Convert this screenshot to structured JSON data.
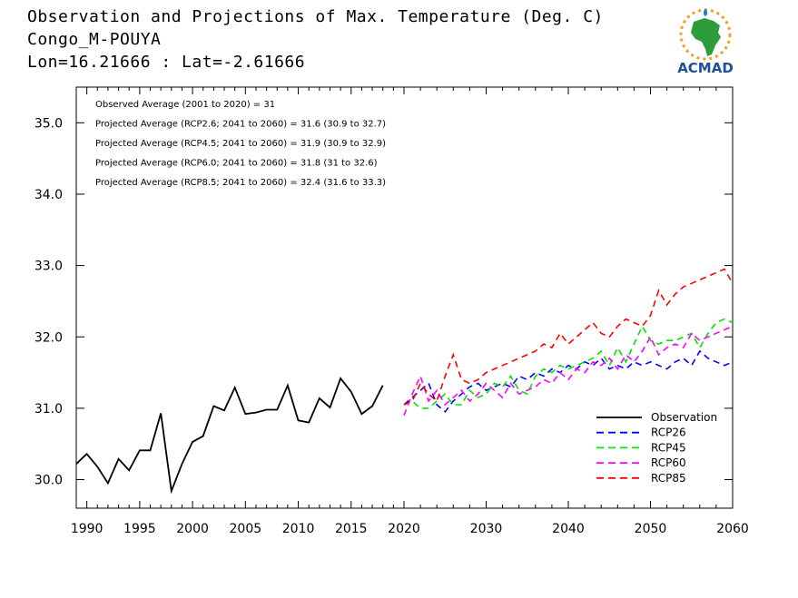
{
  "header": {
    "title": "Observation and Projections of Max. Temperature (Deg. C)",
    "station": "Congo_M-POUYA",
    "coords": "Lon=16.21666 : Lat=-2.61666"
  },
  "logo": {
    "text": "ACMAD",
    "icon": "africa-sun-logo-icon",
    "color_green": "#2e9c3a",
    "color_blue": "#1f4f9c",
    "color_gold": "#f0a020"
  },
  "chart_data": {
    "type": "line",
    "title": "Observation and Projections of Max. Temperature (Deg. C)",
    "xlabel": "",
    "ylabel": "",
    "xlim": [
      1989,
      2060
    ],
    "ylim": [
      29.6,
      35.5
    ],
    "grid": false,
    "legend_position": "bottom-right",
    "x_ticks": [
      1990,
      1995,
      2000,
      2005,
      2010,
      2015,
      2020,
      2030,
      2040,
      2050,
      2060
    ],
    "y_ticks": [
      "30.0",
      "31.0",
      "32.0",
      "33.0",
      "34.0",
      "35.0"
    ],
    "annotations": [
      "Observed Average (2001 to 2020) = 31",
      "Projected Average (RCP2.6; 2041 to 2060) = 31.6 (30.9 to 32.7)",
      "Projected Average (RCP4.5; 2041 to 2060) = 31.9 (30.9 to 32.9)",
      "Projected Average (RCP6.0; 2041 to 2060) = 31.8 (31 to 32.6)",
      "Projected Average (RCP8.5; 2041 to 2060) = 32.4 (31.6 to 33.3)"
    ],
    "series": [
      {
        "name": "Observation",
        "color": "#000000",
        "dashed": false,
        "x": [
          1989,
          1990,
          1991,
          1992,
          1993,
          1994,
          1995,
          1996,
          1997,
          1998,
          1999,
          2000,
          2001,
          2002,
          2003,
          2004,
          2005,
          2006,
          2007,
          2008,
          2009,
          2010,
          2011,
          2012,
          2013,
          2014,
          2015,
          2016,
          2017,
          2018,
          2019,
          2020
        ],
        "y": [
          30.22,
          30.36,
          30.18,
          29.95,
          30.29,
          30.13,
          30.41,
          30.41,
          30.93,
          29.84,
          30.22,
          30.53,
          30.61,
          31.03,
          30.97,
          31.29,
          30.92,
          30.94,
          30.98,
          30.98,
          31.32,
          30.83,
          30.8,
          31.14,
          31.01,
          31.42,
          31.23,
          30.92,
          31.03,
          31.32,
          null,
          null
        ]
      },
      {
        "name": "RCP26",
        "color": "#0000ff",
        "dashed": true,
        "x": [
          2020,
          2021,
          2022,
          2023,
          2024,
          2025,
          2026,
          2027,
          2028,
          2029,
          2030,
          2031,
          2032,
          2033,
          2034,
          2035,
          2036,
          2037,
          2038,
          2039,
          2040,
          2041,
          2042,
          2043,
          2044,
          2045,
          2046,
          2047,
          2048,
          2049,
          2050,
          2051,
          2052,
          2053,
          2054,
          2055,
          2056,
          2057,
          2058,
          2059,
          2060
        ],
        "y": [
          31.05,
          31.15,
          31.25,
          31.35,
          31.05,
          30.95,
          31.1,
          31.2,
          31.3,
          31.35,
          31.25,
          31.3,
          31.35,
          31.3,
          31.45,
          31.4,
          31.5,
          31.45,
          31.55,
          31.5,
          31.6,
          31.55,
          31.65,
          31.6,
          31.7,
          31.55,
          31.6,
          31.55,
          31.65,
          31.6,
          31.65,
          31.6,
          31.55,
          31.65,
          31.7,
          31.6,
          31.8,
          31.7,
          31.65,
          31.6,
          31.65
        ]
      },
      {
        "name": "RCP45",
        "color": "#00e600",
        "dashed": true,
        "x": [
          2020,
          2021,
          2022,
          2023,
          2024,
          2025,
          2026,
          2027,
          2028,
          2029,
          2030,
          2031,
          2032,
          2033,
          2034,
          2035,
          2036,
          2037,
          2038,
          2039,
          2040,
          2041,
          2042,
          2043,
          2044,
          2045,
          2046,
          2047,
          2048,
          2049,
          2050,
          2051,
          2052,
          2053,
          2054,
          2055,
          2056,
          2057,
          2058,
          2059,
          2060
        ],
        "y": [
          31.05,
          31.1,
          31.0,
          31.0,
          31.1,
          31.2,
          31.05,
          31.05,
          31.25,
          31.15,
          31.2,
          31.35,
          31.3,
          31.45,
          31.25,
          31.2,
          31.45,
          31.55,
          31.5,
          31.6,
          31.55,
          31.6,
          31.65,
          31.7,
          31.8,
          31.6,
          31.85,
          31.65,
          31.9,
          32.15,
          31.95,
          31.9,
          31.95,
          31.95,
          32.0,
          32.05,
          31.85,
          32.05,
          32.2,
          32.25,
          32.2
        ]
      },
      {
        "name": "RCP60",
        "color": "#ff00ff",
        "dashed": true,
        "x": [
          2020,
          2021,
          2022,
          2023,
          2024,
          2025,
          2026,
          2027,
          2028,
          2029,
          2030,
          2031,
          2032,
          2033,
          2034,
          2035,
          2036,
          2037,
          2038,
          2039,
          2040,
          2041,
          2042,
          2043,
          2044,
          2045,
          2046,
          2047,
          2048,
          2049,
          2050,
          2051,
          2052,
          2053,
          2054,
          2055,
          2056,
          2057,
          2058,
          2059,
          2060
        ],
        "y": [
          30.9,
          31.2,
          31.45,
          31.1,
          31.25,
          31.05,
          31.15,
          31.25,
          31.1,
          31.2,
          31.35,
          31.25,
          31.15,
          31.35,
          31.2,
          31.25,
          31.3,
          31.4,
          31.35,
          31.5,
          31.4,
          31.55,
          31.5,
          31.65,
          31.6,
          31.7,
          31.55,
          31.75,
          31.65,
          31.8,
          32.0,
          31.75,
          31.85,
          31.9,
          31.85,
          32.05,
          31.95,
          32.0,
          32.05,
          32.1,
          32.15
        ]
      },
      {
        "name": "RCP85",
        "color": "#ff0000",
        "dashed": true,
        "x": [
          2020,
          2021,
          2022,
          2023,
          2024,
          2025,
          2026,
          2027,
          2028,
          2029,
          2030,
          2031,
          2032,
          2033,
          2034,
          2035,
          2036,
          2037,
          2038,
          2039,
          2040,
          2041,
          2042,
          2043,
          2044,
          2045,
          2046,
          2047,
          2048,
          2049,
          2050,
          2051,
          2052,
          2053,
          2054,
          2055,
          2056,
          2057,
          2058,
          2059,
          2060
        ],
        "y": [
          31.05,
          31.1,
          31.35,
          31.2,
          31.1,
          31.45,
          31.75,
          31.4,
          31.35,
          31.4,
          31.5,
          31.55,
          31.6,
          31.65,
          31.7,
          31.75,
          31.8,
          31.9,
          31.85,
          32.05,
          31.9,
          32.0,
          32.1,
          32.2,
          32.05,
          32.0,
          32.15,
          32.25,
          32.2,
          32.15,
          32.3,
          32.65,
          32.45,
          32.6,
          32.7,
          32.75,
          32.8,
          32.85,
          32.9,
          32.95,
          32.75
        ]
      }
    ]
  }
}
